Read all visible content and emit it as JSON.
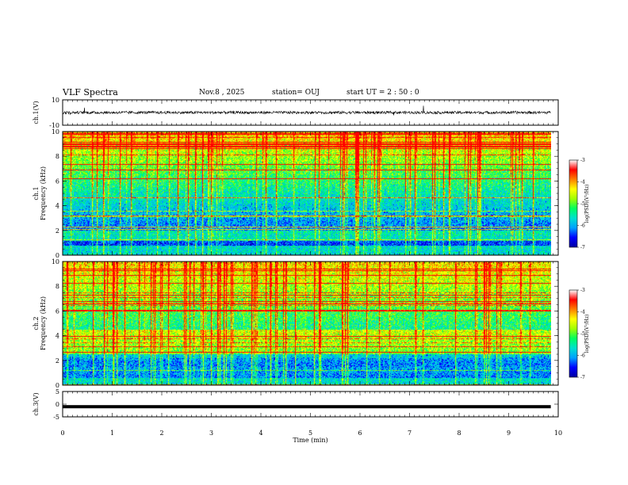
{
  "header": {
    "title": "VLF Spectra",
    "date": "Nov.8 , 2025",
    "station": "station= OUJ",
    "start": "start UT = 2 : 50 : 0"
  },
  "colorbar_label": "log(PSD)(V²/Hz)",
  "colors": {
    "cmap": [
      "#0000a0",
      "#0000ff",
      "#00a0ff",
      "#00e0d0",
      "#00ff60",
      "#a0ff00",
      "#ffff00",
      "#ff8000",
      "#ff0000",
      "#ffffff"
    ]
  },
  "chart_data": [
    {
      "type": "line",
      "ylabel": "ch.1(V)",
      "ylim": [
        -10,
        10
      ],
      "y_ticks": [
        "10",
        "-10"
      ],
      "description_level": 0
    },
    {
      "type": "heatmap",
      "ylabel": "ch.1\nFrequency (kHz)",
      "ylabel_parts": [
        "ch.1",
        "Frequency (kHz)"
      ],
      "ylim": [
        0,
        10
      ],
      "y_ticks": [
        "0",
        "2",
        "4",
        "6",
        "8",
        "10"
      ],
      "colorbar": {
        "range": [
          -7,
          -3
        ],
        "ticks": [
          "-3",
          "-4",
          "-5",
          "-6",
          "-7"
        ]
      }
    },
    {
      "type": "heatmap",
      "ylabel_parts": [
        "ch.2",
        "Frequency (kHz)"
      ],
      "ylim": [
        0,
        10
      ],
      "y_ticks": [
        "0",
        "2",
        "4",
        "6",
        "8",
        "10"
      ],
      "colorbar": {
        "range": [
          -7,
          -3
        ],
        "ticks": [
          "-3",
          "-4",
          "-5",
          "-6",
          "-7"
        ]
      }
    },
    {
      "type": "line",
      "ylabel": "ch.3(V)",
      "ylim": [
        -5,
        5
      ],
      "y_ticks": [
        "5",
        "0",
        "-5"
      ],
      "description_level": -1
    }
  ],
  "xaxis": {
    "label": "Time (min)",
    "xlim": [
      0,
      10
    ],
    "ticks": [
      "0",
      "1",
      "2",
      "3",
      "4",
      "5",
      "6",
      "7",
      "8",
      "9",
      "10"
    ],
    "data_end": 9.85
  }
}
